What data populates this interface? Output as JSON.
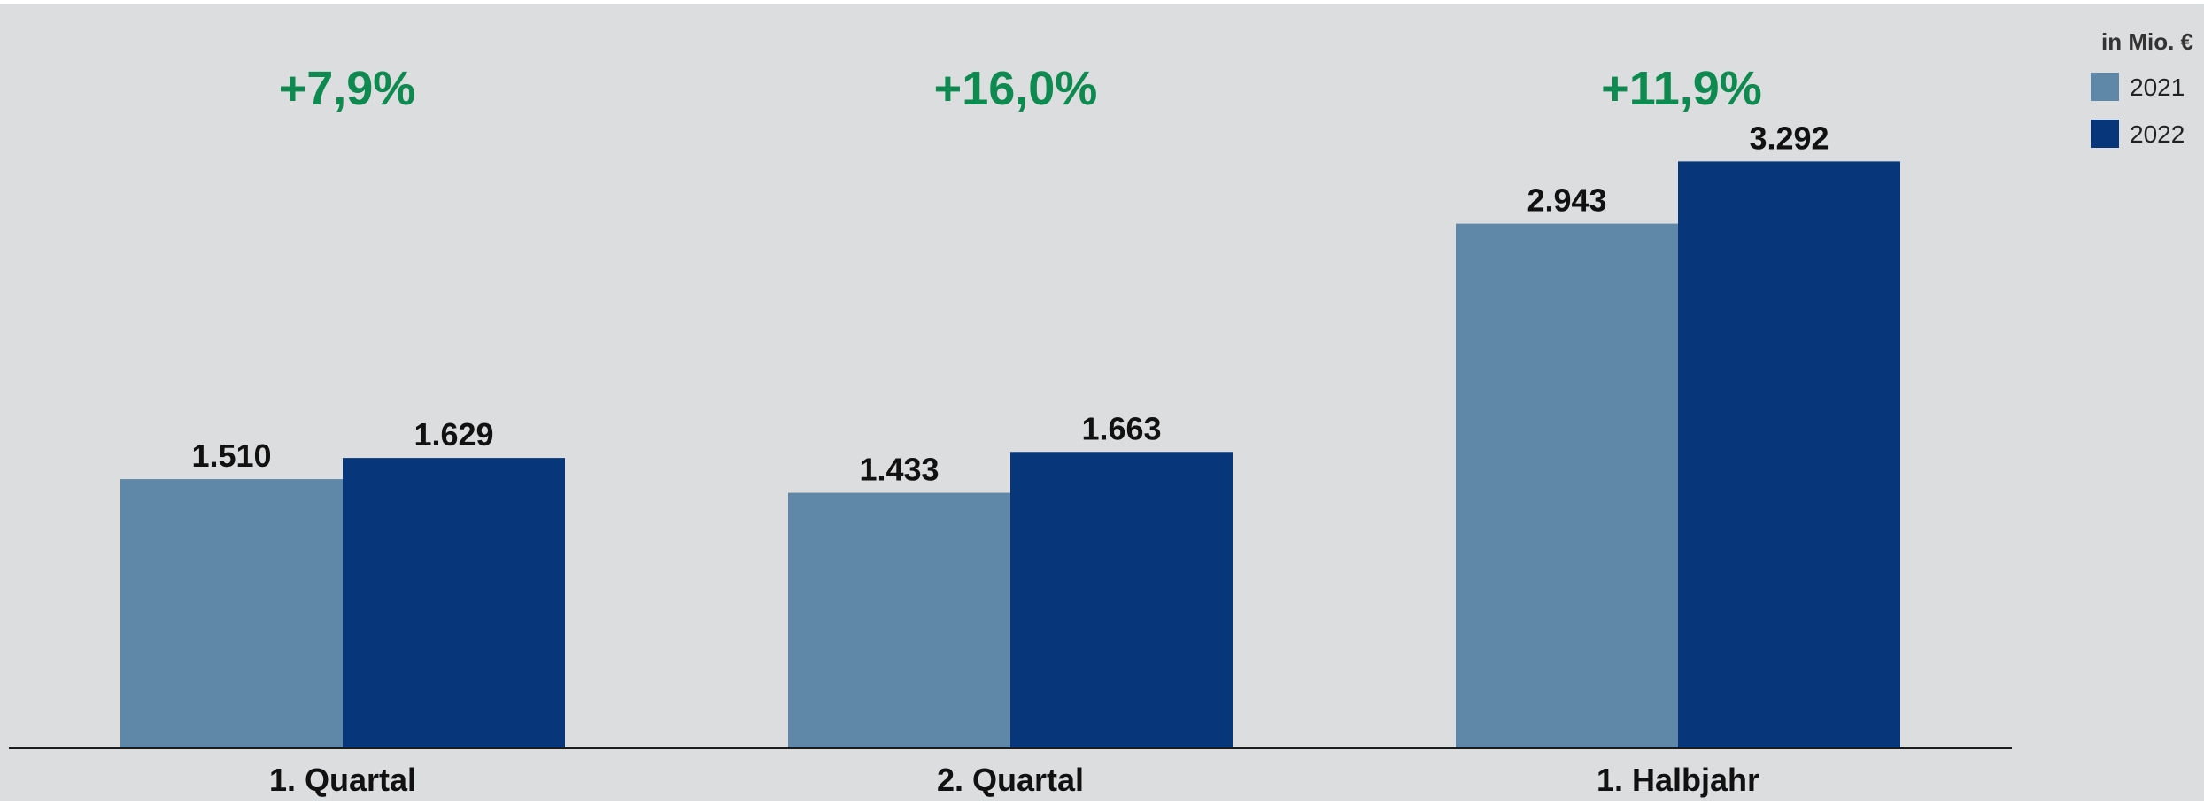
{
  "chart_data": {
    "type": "bar",
    "unit_label": "in Mio. €",
    "categories": [
      "1. Quartal",
      "2. Quartal",
      "1. Halbjahr"
    ],
    "series": [
      {
        "name": "2021",
        "values": [
          1510,
          1433,
          2943
        ],
        "labels": [
          "1.510",
          "1.433",
          "2.943"
        ]
      },
      {
        "name": "2022",
        "values": [
          1629,
          1663,
          3292
        ],
        "labels": [
          "1.629",
          "1.663",
          "3.292"
        ]
      }
    ],
    "changes": [
      "+7,9%",
      "+16,0%",
      "+11,9%"
    ],
    "ylim": [
      0,
      3900
    ],
    "grid": false,
    "legend_position": "top-right"
  },
  "colors": {
    "background": "#dcdddf",
    "series_2021": "#5f88a8",
    "series_2022": "#07377a",
    "change_text": "#0d8a4f",
    "axis": "#1a1a1a",
    "value_text": "#111111"
  }
}
